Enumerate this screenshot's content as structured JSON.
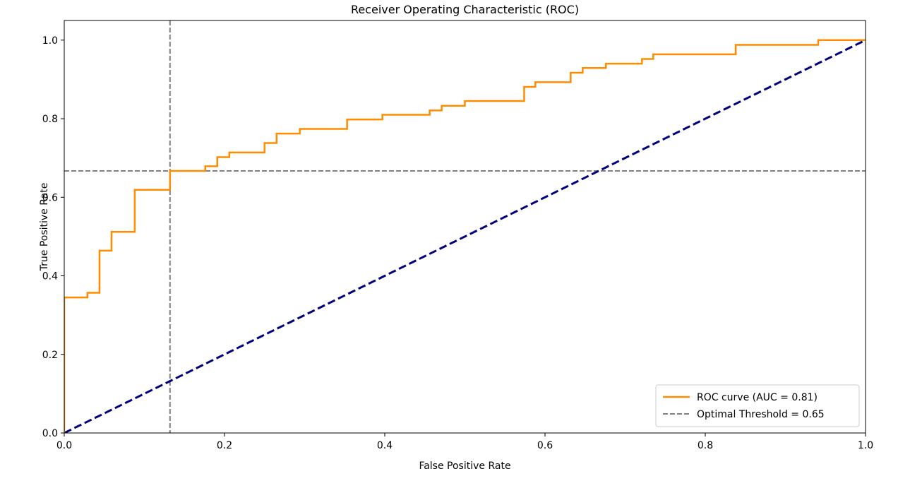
{
  "chart_data": {
    "type": "line",
    "title": "Receiver Operating Characteristic (ROC)",
    "xlabel": "False Positive Rate",
    "ylabel": "True Positive Rate",
    "xlim": [
      0.0,
      1.0
    ],
    "ylim": [
      0.0,
      1.05
    ],
    "x_ticks": [
      "0.0",
      "0.2",
      "0.4",
      "0.6",
      "0.8",
      "1.0"
    ],
    "y_ticks": [
      "0.0",
      "0.2",
      "0.4",
      "0.6",
      "0.8",
      "1.0"
    ],
    "grid": false,
    "legend_position": "lower-right",
    "series": [
      {
        "name": "ROC curve (AUC = 0.81)",
        "color": "#ff8c00",
        "style": "solid",
        "x": [
          0.0,
          0.0,
          0.029,
          0.029,
          0.044,
          0.044,
          0.059,
          0.059,
          0.088,
          0.088,
          0.132,
          0.132,
          0.176,
          0.176,
          0.191,
          0.191,
          0.206,
          0.206,
          0.25,
          0.25,
          0.265,
          0.265,
          0.294,
          0.294,
          0.353,
          0.353,
          0.397,
          0.397,
          0.456,
          0.456,
          0.471,
          0.471,
          0.5,
          0.5,
          0.574,
          0.574,
          0.588,
          0.588,
          0.632,
          0.632,
          0.647,
          0.647,
          0.676,
          0.676,
          0.721,
          0.721,
          0.735,
          0.735,
          0.838,
          0.838,
          0.941,
          0.941,
          1.0
        ],
        "y": [
          0.0,
          0.345,
          0.345,
          0.357,
          0.357,
          0.464,
          0.464,
          0.512,
          0.512,
          0.619,
          0.619,
          0.667,
          0.667,
          0.679,
          0.679,
          0.702,
          0.702,
          0.714,
          0.714,
          0.738,
          0.738,
          0.762,
          0.762,
          0.774,
          0.774,
          0.798,
          0.798,
          0.81,
          0.81,
          0.821,
          0.821,
          0.833,
          0.833,
          0.845,
          0.845,
          0.881,
          0.881,
          0.893,
          0.893,
          0.917,
          0.917,
          0.929,
          0.929,
          0.94,
          0.94,
          0.952,
          0.952,
          0.964,
          0.964,
          0.988,
          0.988,
          1.0,
          1.0
        ]
      },
      {
        "name": "",
        "color": "#000080",
        "style": "dashed",
        "x": [
          0.0,
          1.0
        ],
        "y": [
          0.0,
          1.0
        ]
      }
    ],
    "optimal_threshold": {
      "label": "Optimal Threshold = 0.65",
      "color": "#808080",
      "fpr": 0.132,
      "tpr": 0.667
    }
  }
}
